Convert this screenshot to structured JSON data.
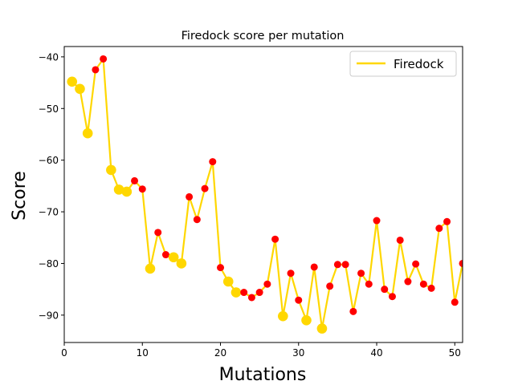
{
  "chart_data": {
    "type": "line",
    "title": "Firedock score per mutation",
    "xlabel": "Mutations",
    "ylabel": "Score",
    "xlim": [
      0,
      51
    ],
    "ylim": [
      -95.3,
      -38.0
    ],
    "xticks": [
      0,
      10,
      20,
      30,
      40,
      50
    ],
    "yticks": [
      -90,
      -80,
      -70,
      -60,
      -50,
      -40
    ],
    "grid": false,
    "legend_position": "top-right",
    "colors": {
      "line": "#ffd700",
      "large_marker": "#ffd700",
      "small_marker": "#ff0000"
    },
    "series": [
      {
        "name": "Firedock",
        "x": [
          1,
          2,
          3,
          4,
          5,
          6,
          7,
          8,
          9,
          10,
          11,
          12,
          13,
          14,
          15,
          16,
          17,
          18,
          19,
          20,
          21,
          22,
          23,
          24,
          25,
          26,
          27,
          28,
          29,
          30,
          31,
          32,
          33,
          34,
          35,
          36,
          37,
          38,
          39,
          40,
          41,
          42,
          43,
          44,
          45,
          46,
          47,
          48,
          49,
          50,
          51
        ],
        "values": [
          -44.8,
          -46.2,
          -54.8,
          -42.5,
          -40.4,
          -61.9,
          -65.7,
          -66.1,
          -64.0,
          -65.6,
          -81.0,
          -74.0,
          -78.3,
          -78.8,
          -80.0,
          -67.1,
          -71.5,
          -65.5,
          -60.3,
          -80.8,
          -83.5,
          -85.6,
          -85.6,
          -86.6,
          -85.6,
          -84.0,
          -75.3,
          -90.2,
          -81.9,
          -87.1,
          -91.0,
          -80.7,
          -92.6,
          -84.4,
          -80.2,
          -80.2,
          -89.3,
          -81.9,
          -84.0,
          -71.7,
          -85.0,
          -86.4,
          -75.5,
          -83.5,
          -80.1,
          -84.0,
          -84.8,
          -73.2,
          -71.9,
          -87.5,
          -80.0
        ],
        "marker_kind": [
          "large",
          "large",
          "large",
          "small",
          "small",
          "large",
          "large",
          "large",
          "small",
          "small",
          "large",
          "small",
          "small",
          "large",
          "large",
          "small",
          "small",
          "small",
          "small",
          "small",
          "large",
          "large",
          "small",
          "small",
          "small",
          "small",
          "small",
          "large",
          "small",
          "small",
          "large",
          "small",
          "large",
          "small",
          "small",
          "small",
          "small",
          "small",
          "small",
          "small",
          "small",
          "small",
          "small",
          "small",
          "small",
          "small",
          "small",
          "small",
          "small",
          "small",
          "small"
        ]
      }
    ]
  }
}
